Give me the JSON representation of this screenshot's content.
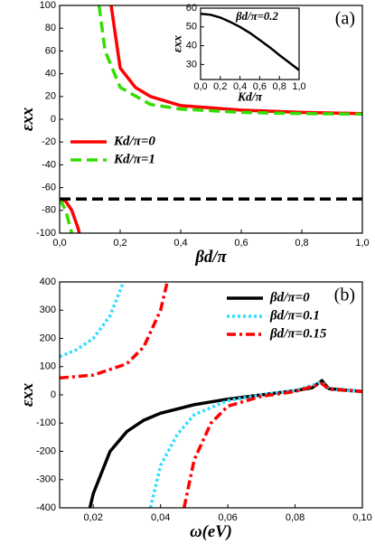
{
  "chart_data": [
    {
      "type": "line",
      "xlabel": "βd/π",
      "ylabel": "εxx",
      "panel_label": "(a)",
      "xlim": [
        0,
        1
      ],
      "ylim": [
        -100,
        100
      ],
      "xticks": [
        {
          "value": 0,
          "label": "0,0"
        },
        {
          "value": 0.2,
          "label": "0,2"
        },
        {
          "value": 0.4,
          "label": "0,4"
        },
        {
          "value": 0.6,
          "label": "0,6"
        },
        {
          "value": 0.8,
          "label": "0,8"
        },
        {
          "value": 1,
          "label": "1,0"
        }
      ],
      "yticks": [
        -100,
        -80,
        -60,
        -40,
        -20,
        0,
        20,
        40,
        60,
        80,
        100
      ],
      "legend": "center left",
      "series": [
        {
          "name": "Kd/π=0",
          "color": "#ff0000",
          "style": "solid",
          "x": [
            0,
            0.02,
            0.04,
            0.06,
            0.065,
            0.1,
            0.17,
            0.2,
            0.25,
            0.3,
            0.4,
            0.5,
            0.6,
            0.8,
            1.0
          ],
          "values": [
            -70,
            -72,
            -80,
            -95,
            -100,
            null,
            100,
            45,
            28,
            20,
            12,
            10,
            8,
            6,
            5
          ]
        },
        {
          "name": "Kd/π=1",
          "color": "#33dd00",
          "style": "dashed",
          "x": [
            0,
            0.02,
            0.035,
            0.04,
            0.08,
            0.13,
            0.15,
            0.2,
            0.3,
            0.4,
            0.6,
            0.8,
            1.0
          ],
          "values": [
            -70,
            -80,
            -95,
            -100,
            null,
            100,
            60,
            28,
            13,
            9,
            6,
            5,
            4.5
          ]
        },
        {
          "color": "#000000",
          "style": "dashed",
          "x": [
            0,
            1
          ],
          "values": [
            -70,
            -70
          ]
        }
      ]
    },
    {
      "type": "line",
      "title": "βd/π=0.2",
      "xlabel": "Kd/π",
      "ylabel": "εxx",
      "xlim": [
        0,
        1
      ],
      "ylim": [
        22,
        60
      ],
      "xticks": [
        {
          "value": 0,
          "label": "0,0"
        },
        {
          "value": 0.2,
          "label": "0,2"
        },
        {
          "value": 0.4,
          "label": "0,4"
        },
        {
          "value": 0.6,
          "label": "0,6"
        },
        {
          "value": 0.8,
          "label": "0,8"
        },
        {
          "value": 1,
          "label": "1,0"
        }
      ],
      "yticks": [
        30,
        40,
        50,
        60
      ],
      "series": [
        {
          "color": "#000000",
          "style": "solid",
          "x": [
            0,
            0.1,
            0.2,
            0.3,
            0.4,
            0.5,
            0.6,
            0.7,
            0.8,
            0.9,
            1.0
          ],
          "values": [
            57,
            56.5,
            55,
            52.7,
            50,
            46.8,
            43,
            39.2,
            35,
            31,
            27
          ]
        }
      ]
    },
    {
      "type": "line",
      "xlabel": "ω(eV)",
      "ylabel": "εxx",
      "panel_label": "(b)",
      "xlim": [
        0.01,
        0.1
      ],
      "ylim": [
        -400,
        400
      ],
      "xticks": [
        {
          "value": 0.02,
          "label": "0,02"
        },
        {
          "value": 0.04,
          "label": "0,04"
        },
        {
          "value": 0.06,
          "label": "0,06"
        },
        {
          "value": 0.08,
          "label": "0,08"
        },
        {
          "value": 0.1,
          "label": "0,10"
        }
      ],
      "yticks": [
        -400,
        -300,
        -200,
        -100,
        0,
        100,
        200,
        300,
        400
      ],
      "legend": "upper right",
      "series": [
        {
          "name": "βd/π=0",
          "color": "#000000",
          "style": "solid",
          "x": [
            0.019,
            0.02,
            0.025,
            0.03,
            0.035,
            0.04,
            0.05,
            0.06,
            0.07,
            0.08,
            0.085,
            0.088,
            0.09,
            0.1
          ],
          "values": [
            -400,
            -350,
            -200,
            -130,
            -90,
            -65,
            -35,
            -15,
            0,
            15,
            25,
            50,
            22,
            12
          ]
        },
        {
          "name": "βd/π=0.1",
          "color": "#33ddff",
          "style": "dotted",
          "x": [
            0.01,
            0.015,
            0.02,
            0.025,
            0.029,
            0.033,
            0.037,
            0.04,
            0.045,
            0.05,
            0.06,
            0.07,
            0.08,
            0.088,
            0.09,
            0.1
          ],
          "values": [
            135,
            160,
            200,
            280,
            400,
            null,
            -400,
            -250,
            -140,
            -70,
            -20,
            0,
            15,
            45,
            20,
            12
          ]
        },
        {
          "name": "βd/π=0.15",
          "color": "#ff0000",
          "style": "dashdot",
          "x": [
            0.01,
            0.02,
            0.03,
            0.035,
            0.04,
            0.042,
            0.045,
            0.047,
            0.05,
            0.055,
            0.06,
            0.07,
            0.08,
            0.088,
            0.09,
            0.1
          ],
          "values": [
            60,
            70,
            110,
            170,
            300,
            400,
            null,
            -400,
            -230,
            -100,
            -40,
            -5,
            12,
            40,
            20,
            12
          ]
        }
      ]
    }
  ]
}
